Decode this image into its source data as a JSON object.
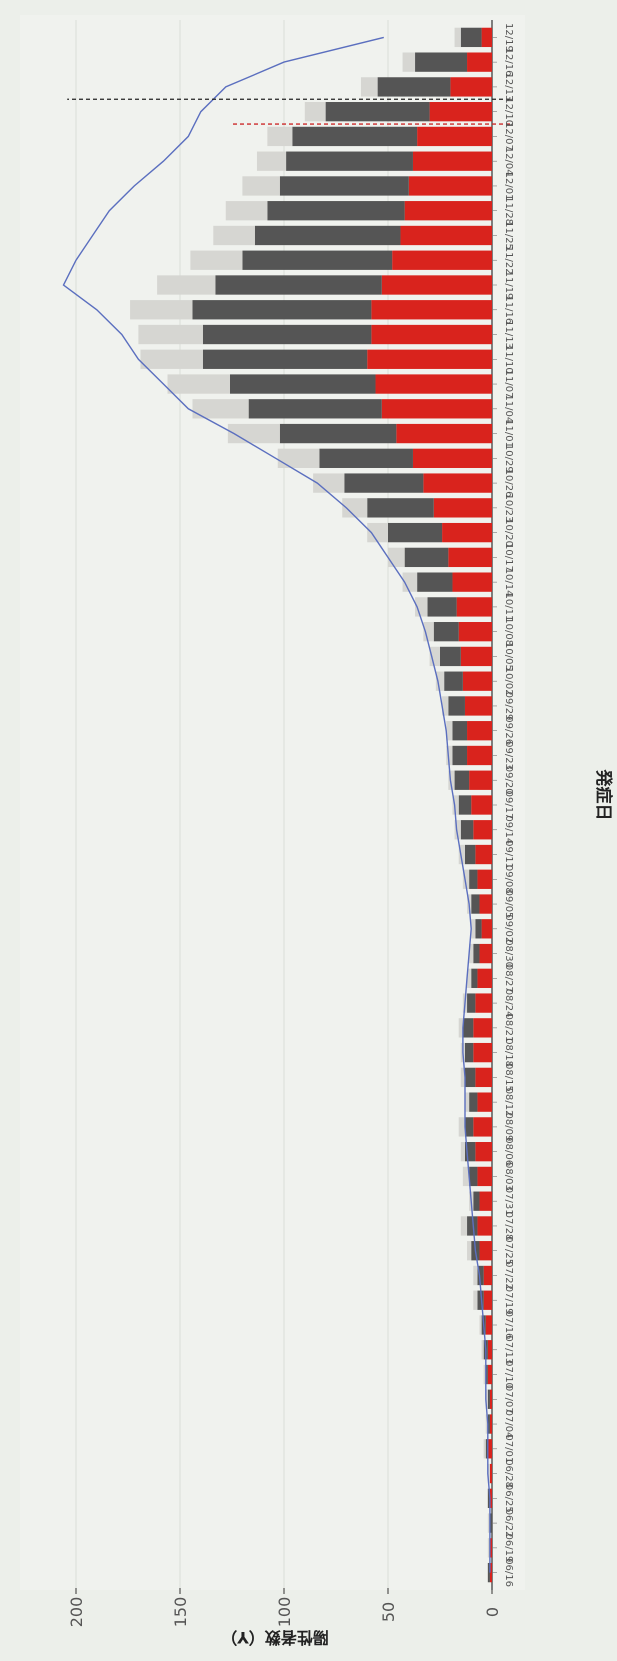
{
  "chart_data": {
    "type": "bar",
    "stacked": true,
    "orientation": "rotated-90",
    "xlabel": "発症日",
    "ylabel": "陽性者数（Y）",
    "ylim": [
      0,
      220
    ],
    "yticks": [
      0,
      50,
      100,
      150,
      200
    ],
    "grid": true,
    "categories": [
      "06/16",
      "06/19",
      "06/22",
      "06/25",
      "06/28",
      "07/01",
      "07/04",
      "07/07",
      "07/10",
      "07/13",
      "07/16",
      "07/19",
      "07/22",
      "07/25",
      "07/28",
      "07/31",
      "08/03",
      "08/06",
      "08/09",
      "08/12",
      "08/15",
      "08/18",
      "08/21",
      "08/24",
      "08/27",
      "08/30",
      "09/02",
      "09/05",
      "09/08",
      "09/11",
      "09/14",
      "09/17",
      "09/20",
      "09/23",
      "09/26",
      "09/29",
      "10/02",
      "10/05",
      "10/08",
      "10/11",
      "10/14",
      "10/17",
      "10/20",
      "10/23",
      "10/26",
      "10/29",
      "11/01",
      "11/04",
      "11/07",
      "11/10",
      "11/13",
      "11/16",
      "11/19",
      "11/22",
      "11/25",
      "11/28",
      "12/01",
      "12/04",
      "12/07",
      "12/10",
      "12/13",
      "12/16",
      "12/19"
    ],
    "series": [
      {
        "color": "#d9231d",
        "values": [
          1,
          1,
          0,
          1,
          1,
          2,
          1,
          1,
          2,
          2,
          3,
          4,
          4,
          6,
          7,
          6,
          7,
          8,
          9,
          7,
          8,
          9,
          9,
          8,
          7,
          6,
          5,
          6,
          7,
          8,
          9,
          10,
          11,
          12,
          12,
          13,
          14,
          15,
          16,
          17,
          19,
          21,
          24,
          28,
          33,
          38,
          46,
          53,
          56,
          60,
          58,
          58,
          53,
          48,
          44,
          42,
          40,
          38,
          36,
          30,
          20,
          12,
          5
        ]
      },
      {
        "color": "#555555",
        "values": [
          1,
          0,
          1,
          1,
          0,
          1,
          1,
          1,
          1,
          2,
          2,
          3,
          3,
          4,
          5,
          3,
          4,
          5,
          4,
          4,
          5,
          4,
          5,
          4,
          3,
          3,
          3,
          4,
          4,
          5,
          6,
          6,
          7,
          7,
          7,
          8,
          9,
          10,
          12,
          14,
          17,
          21,
          26,
          32,
          38,
          45,
          56,
          64,
          70,
          79,
          81,
          86,
          80,
          72,
          70,
          66,
          62,
          61,
          60,
          50,
          35,
          25,
          10
        ]
      },
      {
        "color": "#d6d6d2",
        "values": [
          0,
          1,
          1,
          0,
          1,
          1,
          1,
          1,
          1,
          1,
          1,
          2,
          2,
          2,
          3,
          2,
          3,
          2,
          3,
          2,
          2,
          2,
          2,
          2,
          2,
          2,
          2,
          2,
          3,
          3,
          3,
          3,
          3,
          3,
          3,
          3,
          4,
          5,
          5,
          6,
          7,
          8,
          10,
          12,
          15,
          20,
          25,
          27,
          30,
          30,
          31,
          30,
          28,
          25,
          20,
          20,
          18,
          14,
          12,
          10,
          8,
          6,
          3
        ]
      }
    ],
    "trend_line": {
      "color": "#5b6fbf",
      "values": [
        1,
        1,
        1,
        1,
        2,
        2,
        2,
        3,
        3,
        3,
        4,
        5,
        6,
        8,
        9,
        10,
        11,
        12,
        13,
        13,
        13,
        14,
        14,
        13,
        12,
        11,
        10,
        11,
        13,
        15,
        17,
        18,
        20,
        21,
        22,
        24,
        26,
        29,
        32,
        36,
        42,
        50,
        58,
        70,
        84,
        104,
        124,
        146,
        158,
        170,
        178,
        190,
        206,
        200,
        192,
        184,
        172,
        158,
        146,
        140,
        128,
        100,
        52
      ]
    },
    "reference_lines": [
      {
        "at_category": "12/07",
        "color": "#cc2a2a",
        "style": "dashed",
        "extent": 0.55
      },
      {
        "at_category": "12/10",
        "color": "#222222",
        "style": "dashed",
        "extent": 0.9
      }
    ]
  }
}
